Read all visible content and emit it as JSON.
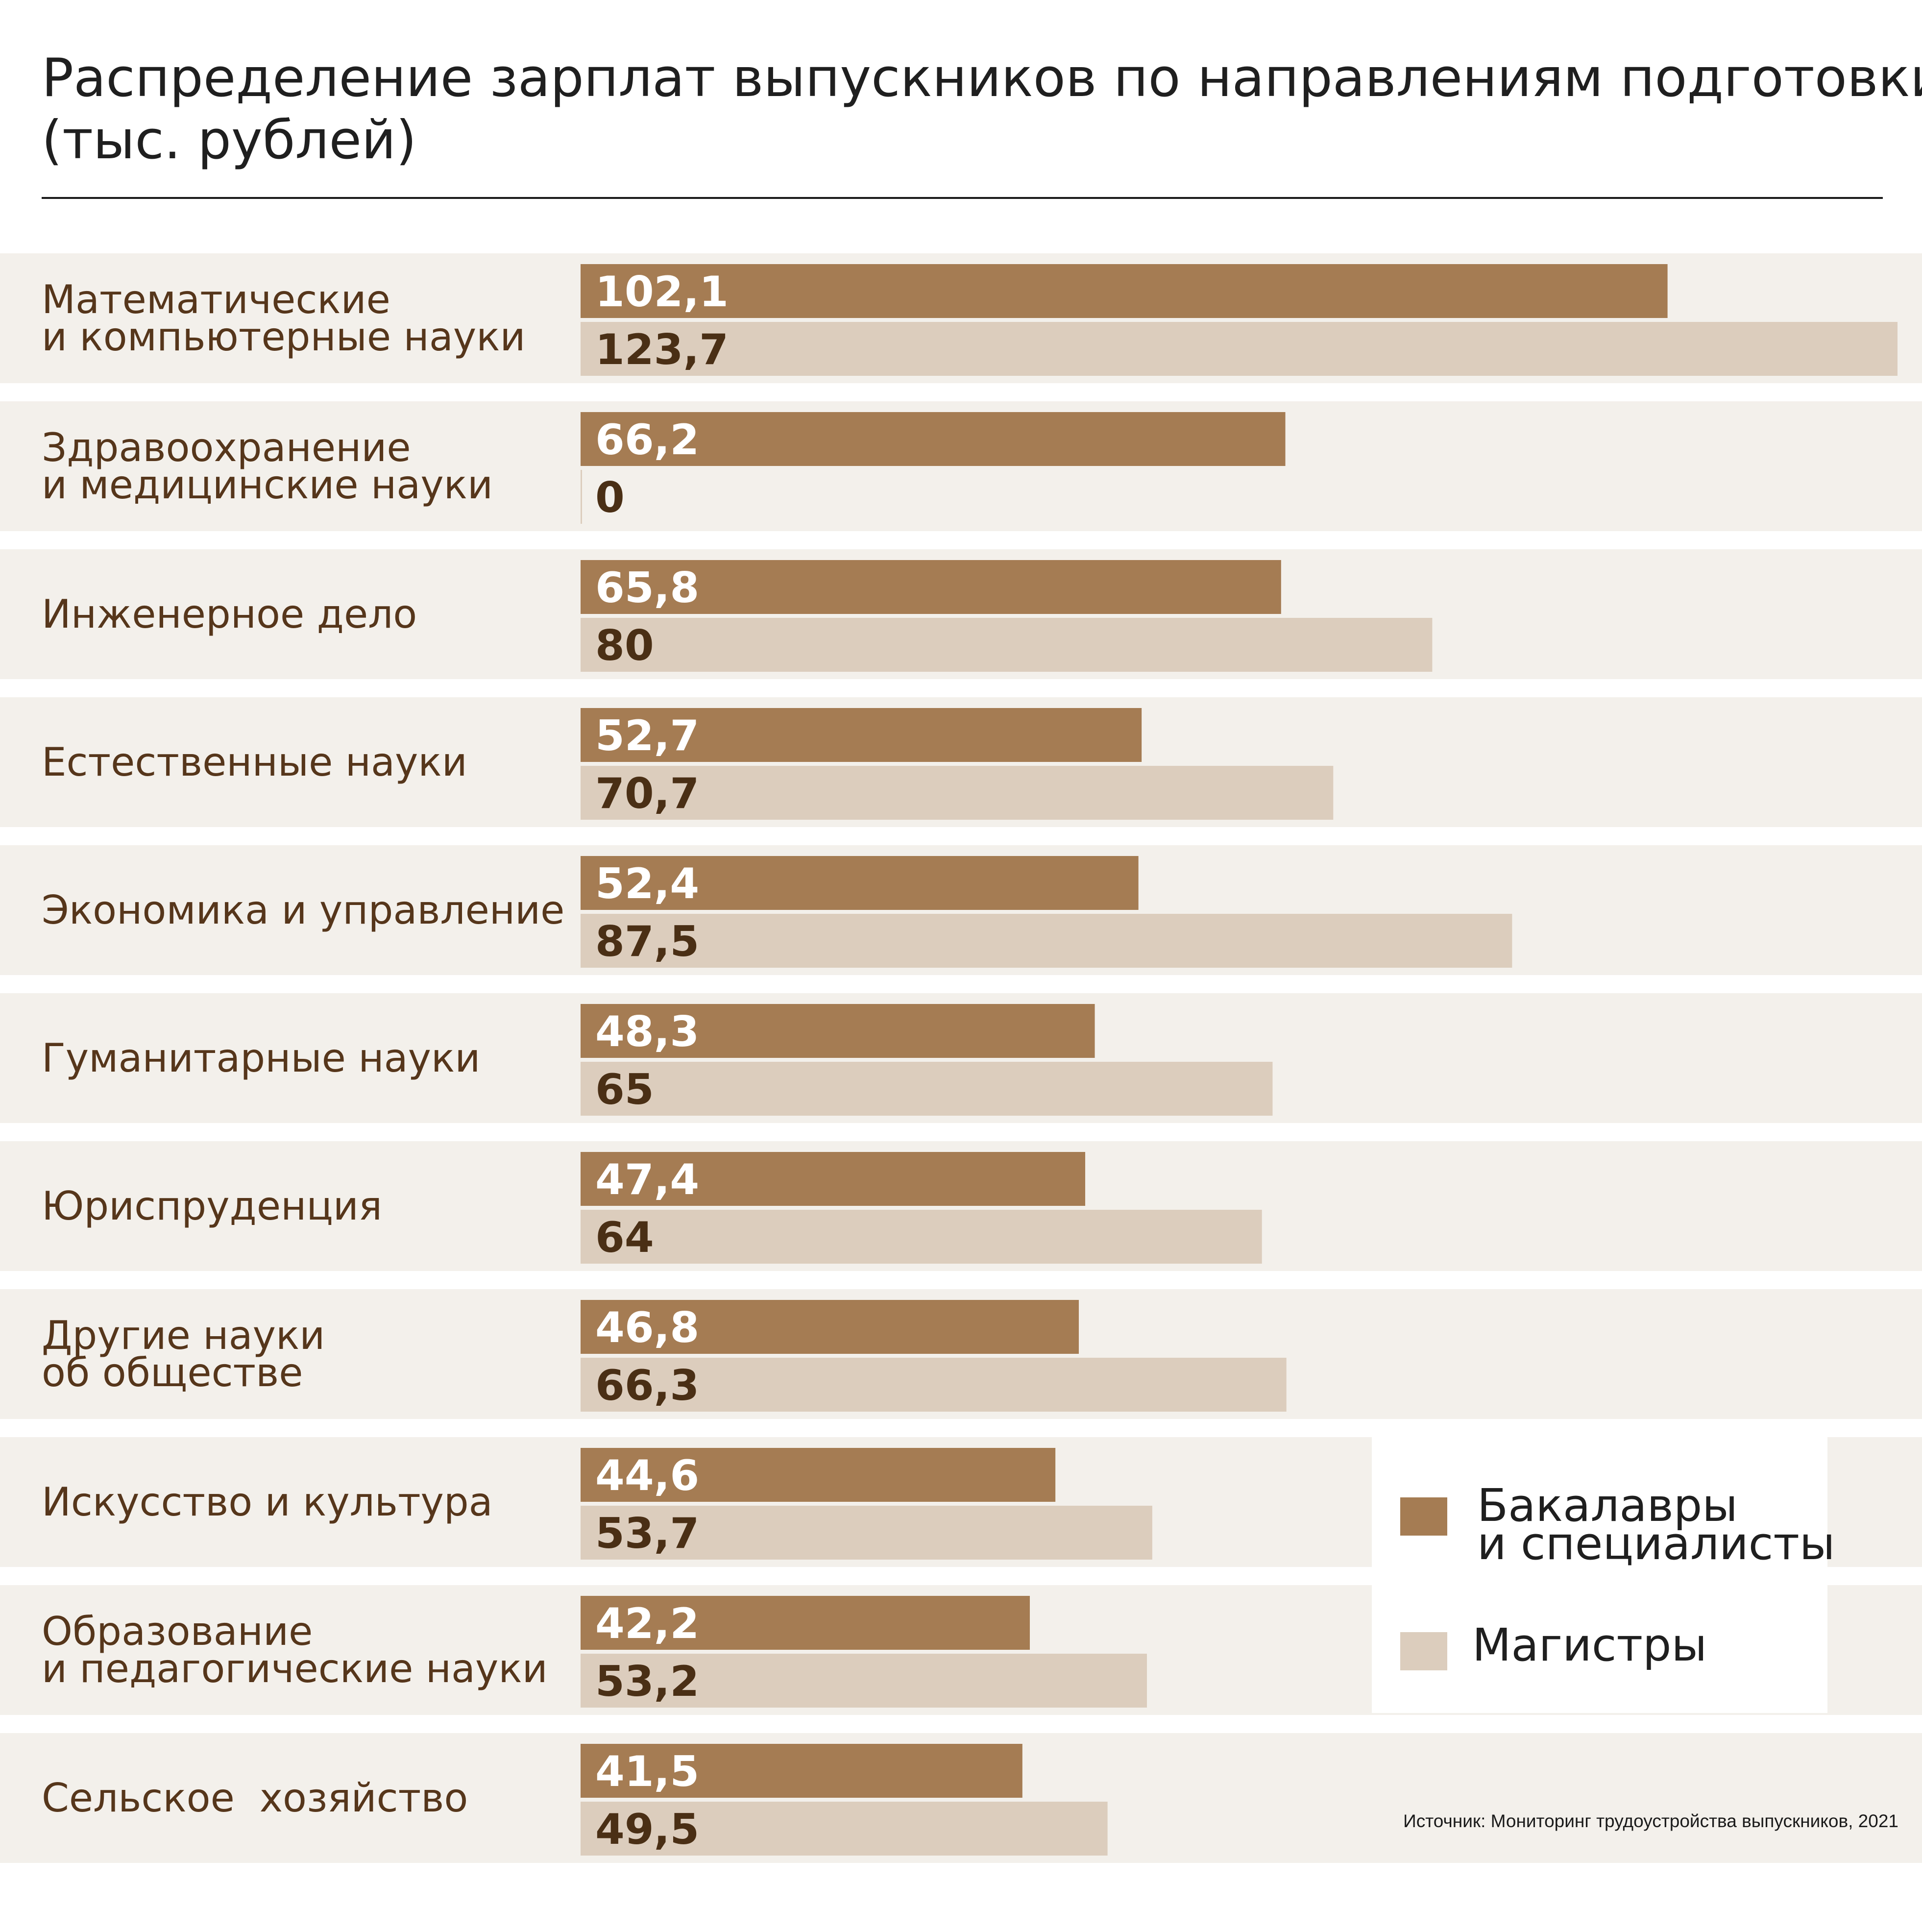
{
  "title": {
    "line1": "Распределение зарплат выпускников по направлениям подготовки",
    "line2": "(тыс. рублей)"
  },
  "source": "Источник: Мониторинг трудоустройства выпускников, 2021",
  "legend": {
    "bachelors_line1": "Бакалавры",
    "bachelors_line2": "и специалисты",
    "masters": "Магистры"
  },
  "colors": {
    "bachelors": "#a57c53",
    "masters": "#dccdbd",
    "row_background": "#f3f0eb",
    "label_text": "#56361b",
    "value_text_on_dark": "#ffffff",
    "value_text_on_light": "#4a2f15"
  },
  "chart_data": {
    "type": "bar",
    "orientation": "horizontal",
    "title": "Распределение зарплат выпускников по направлениям подготовки (тыс. рублей)",
    "categories": [
      "Математические\nи компьютерные науки",
      "Здравоохранение\nи медицинские науки",
      "Инженерное дело",
      "Естественные науки",
      "Экономика и управление",
      "Гуманитарные науки",
      "Юриспруденция",
      "Другие науки\nоб обществе",
      "Искусство и культура",
      "Образование\nи педагогические науки",
      "Сельское  хозяйство"
    ],
    "series": [
      {
        "name": "Бакалавры и специалисты",
        "values": [
          102.1,
          66.2,
          65.8,
          52.7,
          52.4,
          48.3,
          47.4,
          46.8,
          44.6,
          42.2,
          41.5
        ],
        "labels": [
          "102,1",
          "66,2",
          "65,8",
          "52,7",
          "52,4",
          "48,3",
          "47,4",
          "46,8",
          "44,6",
          "42,2",
          "41,5"
        ]
      },
      {
        "name": "Магистры",
        "values": [
          123.7,
          0,
          80,
          70.7,
          87.5,
          65,
          64,
          66.3,
          53.7,
          53.2,
          49.5
        ],
        "labels": [
          "123,7",
          "0",
          "80",
          "70,7",
          "87,5",
          "65",
          "64",
          "66,3",
          "53,7",
          "53,2",
          "49,5"
        ]
      }
    ],
    "xlim": [
      0,
      123.7
    ],
    "grid": false,
    "legend_position": "bottom-right"
  }
}
